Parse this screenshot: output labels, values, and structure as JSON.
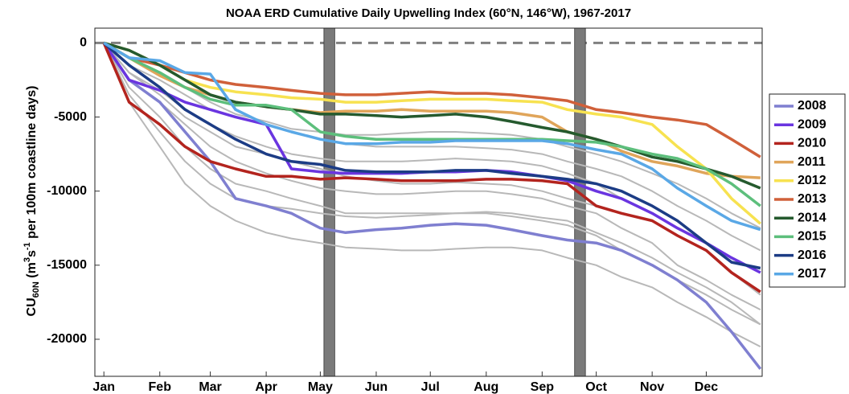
{
  "chart_data": {
    "type": "line",
    "title": "NOAA ERD Cumulative Daily Upwelling Index (60°N, 146°W), 1967-2017",
    "y_label_parts": [
      "CU",
      "60N",
      " (m",
      "3",
      "s",
      "-1",
      " per 100m coastline days)"
    ],
    "x": [
      1,
      15,
      32,
      46,
      60,
      74,
      91,
      105,
      121,
      135,
      152,
      166,
      182,
      196,
      213,
      227,
      244,
      258,
      274,
      288,
      305,
      319,
      335,
      349,
      365
    ],
    "xlim": [
      -4,
      366
    ],
    "xticks": [
      {
        "value": 1,
        "label": "Jan"
      },
      {
        "value": 32,
        "label": "Feb"
      },
      {
        "value": 60,
        "label": "Mar"
      },
      {
        "value": 91,
        "label": "Apr"
      },
      {
        "value": 121,
        "label": "May"
      },
      {
        "value": 152,
        "label": "Jun"
      },
      {
        "value": 182,
        "label": "Jul"
      },
      {
        "value": 213,
        "label": "Aug"
      },
      {
        "value": 244,
        "label": "Sep"
      },
      {
        "value": 274,
        "label": "Oct"
      },
      {
        "value": 305,
        "label": "Nov"
      },
      {
        "value": 335,
        "label": "Dec"
      }
    ],
    "ylim": [
      -22500,
      1000
    ],
    "yticks": [
      0,
      -5000,
      -10000,
      -15000,
      -20000
    ],
    "zero_line": 0,
    "shaded_spans": [
      [
        123,
        129
      ],
      [
        262,
        268
      ]
    ],
    "series": [
      {
        "color": "#b8b8b8",
        "values": [
          0,
          -1500,
          -2500,
          -3500,
          -4500,
          -5000,
          -5500,
          -6000,
          -6500,
          -6800,
          -7000,
          -7000,
          -7000,
          -7000,
          -7100,
          -7200,
          -7500,
          -8000,
          -8500,
          -9000,
          -10000,
          -11000,
          -12000,
          -13000,
          -14000
        ]
      },
      {
        "color": "#b8b8b8",
        "values": [
          0,
          -3000,
          -5000,
          -7000,
          -8500,
          -9500,
          -10000,
          -10500,
          -11000,
          -11500,
          -11500,
          -11500,
          -11500,
          -11500,
          -11500,
          -11700,
          -12000,
          -12300,
          -13000,
          -14000,
          -15000,
          -16000,
          -17000,
          -18000,
          -19000
        ]
      },
      {
        "color": "#b8b8b8",
        "values": [
          0,
          -4000,
          -7000,
          -9500,
          -11000,
          -12000,
          -12800,
          -13200,
          -13500,
          -13800,
          -13900,
          -14000,
          -14000,
          -13900,
          -13800,
          -13800,
          -14000,
          -14500,
          -15000,
          -15800,
          -16500,
          -17500,
          -18500,
          -19500,
          -20500
        ]
      },
      {
        "color": "#b8b8b8",
        "values": [
          0,
          -2000,
          -3500,
          -5000,
          -6000,
          -7000,
          -7500,
          -8000,
          -8500,
          -9000,
          -9300,
          -9500,
          -9500,
          -9400,
          -9500,
          -9600,
          -10000,
          -10500,
          -11000,
          -11500,
          -12000,
          -13000,
          -14000,
          -15500,
          -17000
        ]
      },
      {
        "color": "#b8b8b8",
        "values": [
          0,
          -2500,
          -4000,
          -5500,
          -7000,
          -8000,
          -8800,
          -9300,
          -9800,
          -10000,
          -10200,
          -10200,
          -10100,
          -10000,
          -10000,
          -10200,
          -10500,
          -11000,
          -11500,
          -12500,
          -13500,
          -15000,
          -16000,
          -17000,
          -18000
        ]
      },
      {
        "color": "#b8b8b8",
        "values": [
          0,
          -1000,
          -2000,
          -3000,
          -4000,
          -4800,
          -5300,
          -5800,
          -6000,
          -6200,
          -6200,
          -6100,
          -6000,
          -6000,
          -6100,
          -6200,
          -6500,
          -7000,
          -7500,
          -8000,
          -8800,
          -9500,
          -10500,
          -11500,
          -12500
        ]
      },
      {
        "color": "#b8b8b8",
        "values": [
          0,
          -3500,
          -6000,
          -8000,
          -9500,
          -10500,
          -11000,
          -11200,
          -11500,
          -11700,
          -11800,
          -11700,
          -11600,
          -11500,
          -11400,
          -11500,
          -11800,
          -12000,
          -12800,
          -13500,
          -14500,
          -15500,
          -16500,
          -17500,
          -19000
        ]
      },
      {
        "color": "#b8b8b8",
        "values": [
          0,
          -2000,
          -3200,
          -4500,
          -5500,
          -6300,
          -7000,
          -7500,
          -7800,
          -8000,
          -8000,
          -8000,
          -7900,
          -7800,
          -7900,
          -8000,
          -8300,
          -8800,
          -9500,
          -10500,
          -11500,
          -12500,
          -13500,
          -14500,
          -15500
        ]
      },
      {
        "name": "2008",
        "color": "#7f7fd0",
        "values": [
          0,
          -2500,
          -4000,
          -6000,
          -8000,
          -10500,
          -11000,
          -11500,
          -12500,
          -12800,
          -12600,
          -12500,
          -12300,
          -12200,
          -12300,
          -12600,
          -13000,
          -13300,
          -13500,
          -14000,
          -15000,
          -16000,
          -17500,
          -19500,
          -22000
        ]
      },
      {
        "name": "2009",
        "color": "#6a35e0",
        "values": [
          0,
          -2500,
          -3200,
          -4000,
          -4500,
          -5000,
          -5500,
          -8500,
          -8700,
          -8800,
          -8800,
          -8800,
          -8700,
          -8700,
          -8600,
          -8700,
          -9000,
          -9300,
          -10000,
          -10500,
          -11500,
          -12500,
          -13500,
          -14500,
          -15500
        ]
      },
      {
        "name": "2010",
        "color": "#b3241e",
        "values": [
          0,
          -4000,
          -5500,
          -7000,
          -8000,
          -8500,
          -9000,
          -9000,
          -9200,
          -9100,
          -9200,
          -9300,
          -9300,
          -9300,
          -9200,
          -9200,
          -9300,
          -9500,
          -11000,
          -11500,
          -12000,
          -13000,
          -14000,
          -15500,
          -16800
        ]
      },
      {
        "name": "2011",
        "color": "#e0a55a",
        "values": [
          0,
          -1000,
          -2200,
          -3000,
          -3500,
          -4000,
          -4300,
          -4500,
          -4700,
          -4600,
          -4600,
          -4500,
          -4600,
          -4600,
          -4600,
          -4700,
          -5000,
          -6000,
          -6500,
          -7300,
          -8000,
          -8300,
          -8800,
          -9000,
          -9100
        ]
      },
      {
        "name": "2012",
        "color": "#f7e250",
        "values": [
          0,
          -500,
          -1500,
          -2500,
          -3000,
          -3300,
          -3500,
          -3700,
          -3800,
          -4000,
          -4000,
          -3900,
          -3800,
          -3800,
          -3800,
          -3900,
          -4000,
          -4500,
          -4800,
          -5000,
          -5500,
          -7000,
          -8500,
          -10500,
          -12200
        ]
      },
      {
        "name": "2013",
        "color": "#d0603a",
        "values": [
          0,
          -1000,
          -1500,
          -2000,
          -2500,
          -2800,
          -3000,
          -3200,
          -3400,
          -3500,
          -3500,
          -3400,
          -3300,
          -3400,
          -3400,
          -3500,
          -3700,
          -3900,
          -4500,
          -4700,
          -5000,
          -5200,
          -5500,
          -6500,
          -7700
        ]
      },
      {
        "name": "2014",
        "color": "#255a2e",
        "values": [
          0,
          -500,
          -1500,
          -2500,
          -3500,
          -4000,
          -4300,
          -4500,
          -4800,
          -4800,
          -4900,
          -5000,
          -4900,
          -4800,
          -5000,
          -5300,
          -5700,
          -6000,
          -6500,
          -7000,
          -7700,
          -8000,
          -8500,
          -9000,
          -9800
        ]
      },
      {
        "name": "2015",
        "color": "#5dbf7c",
        "values": [
          0,
          -1000,
          -2000,
          -3000,
          -3800,
          -4200,
          -4200,
          -4500,
          -6000,
          -6300,
          -6500,
          -6500,
          -6500,
          -6500,
          -6500,
          -6500,
          -6500,
          -6600,
          -6700,
          -7000,
          -7500,
          -7800,
          -8500,
          -9500,
          -11000
        ]
      },
      {
        "name": "2016",
        "color": "#1c3c85",
        "values": [
          0,
          -1500,
          -3000,
          -4500,
          -5500,
          -6500,
          -7500,
          -8000,
          -8200,
          -8600,
          -8700,
          -8700,
          -8700,
          -8600,
          -8600,
          -8800,
          -9000,
          -9200,
          -9500,
          -10000,
          -11000,
          -12000,
          -13500,
          -14800,
          -15200
        ]
      },
      {
        "name": "2017",
        "color": "#5aa8e6",
        "values": [
          0,
          -1000,
          -1200,
          -2000,
          -2100,
          -4500,
          -5500,
          -6000,
          -6500,
          -6800,
          -6800,
          -6700,
          -6700,
          -6600,
          -6600,
          -6600,
          -6600,
          -6800,
          -7200,
          -7500,
          -8500,
          -9800,
          -11000,
          -12000,
          -12600
        ]
      }
    ]
  }
}
